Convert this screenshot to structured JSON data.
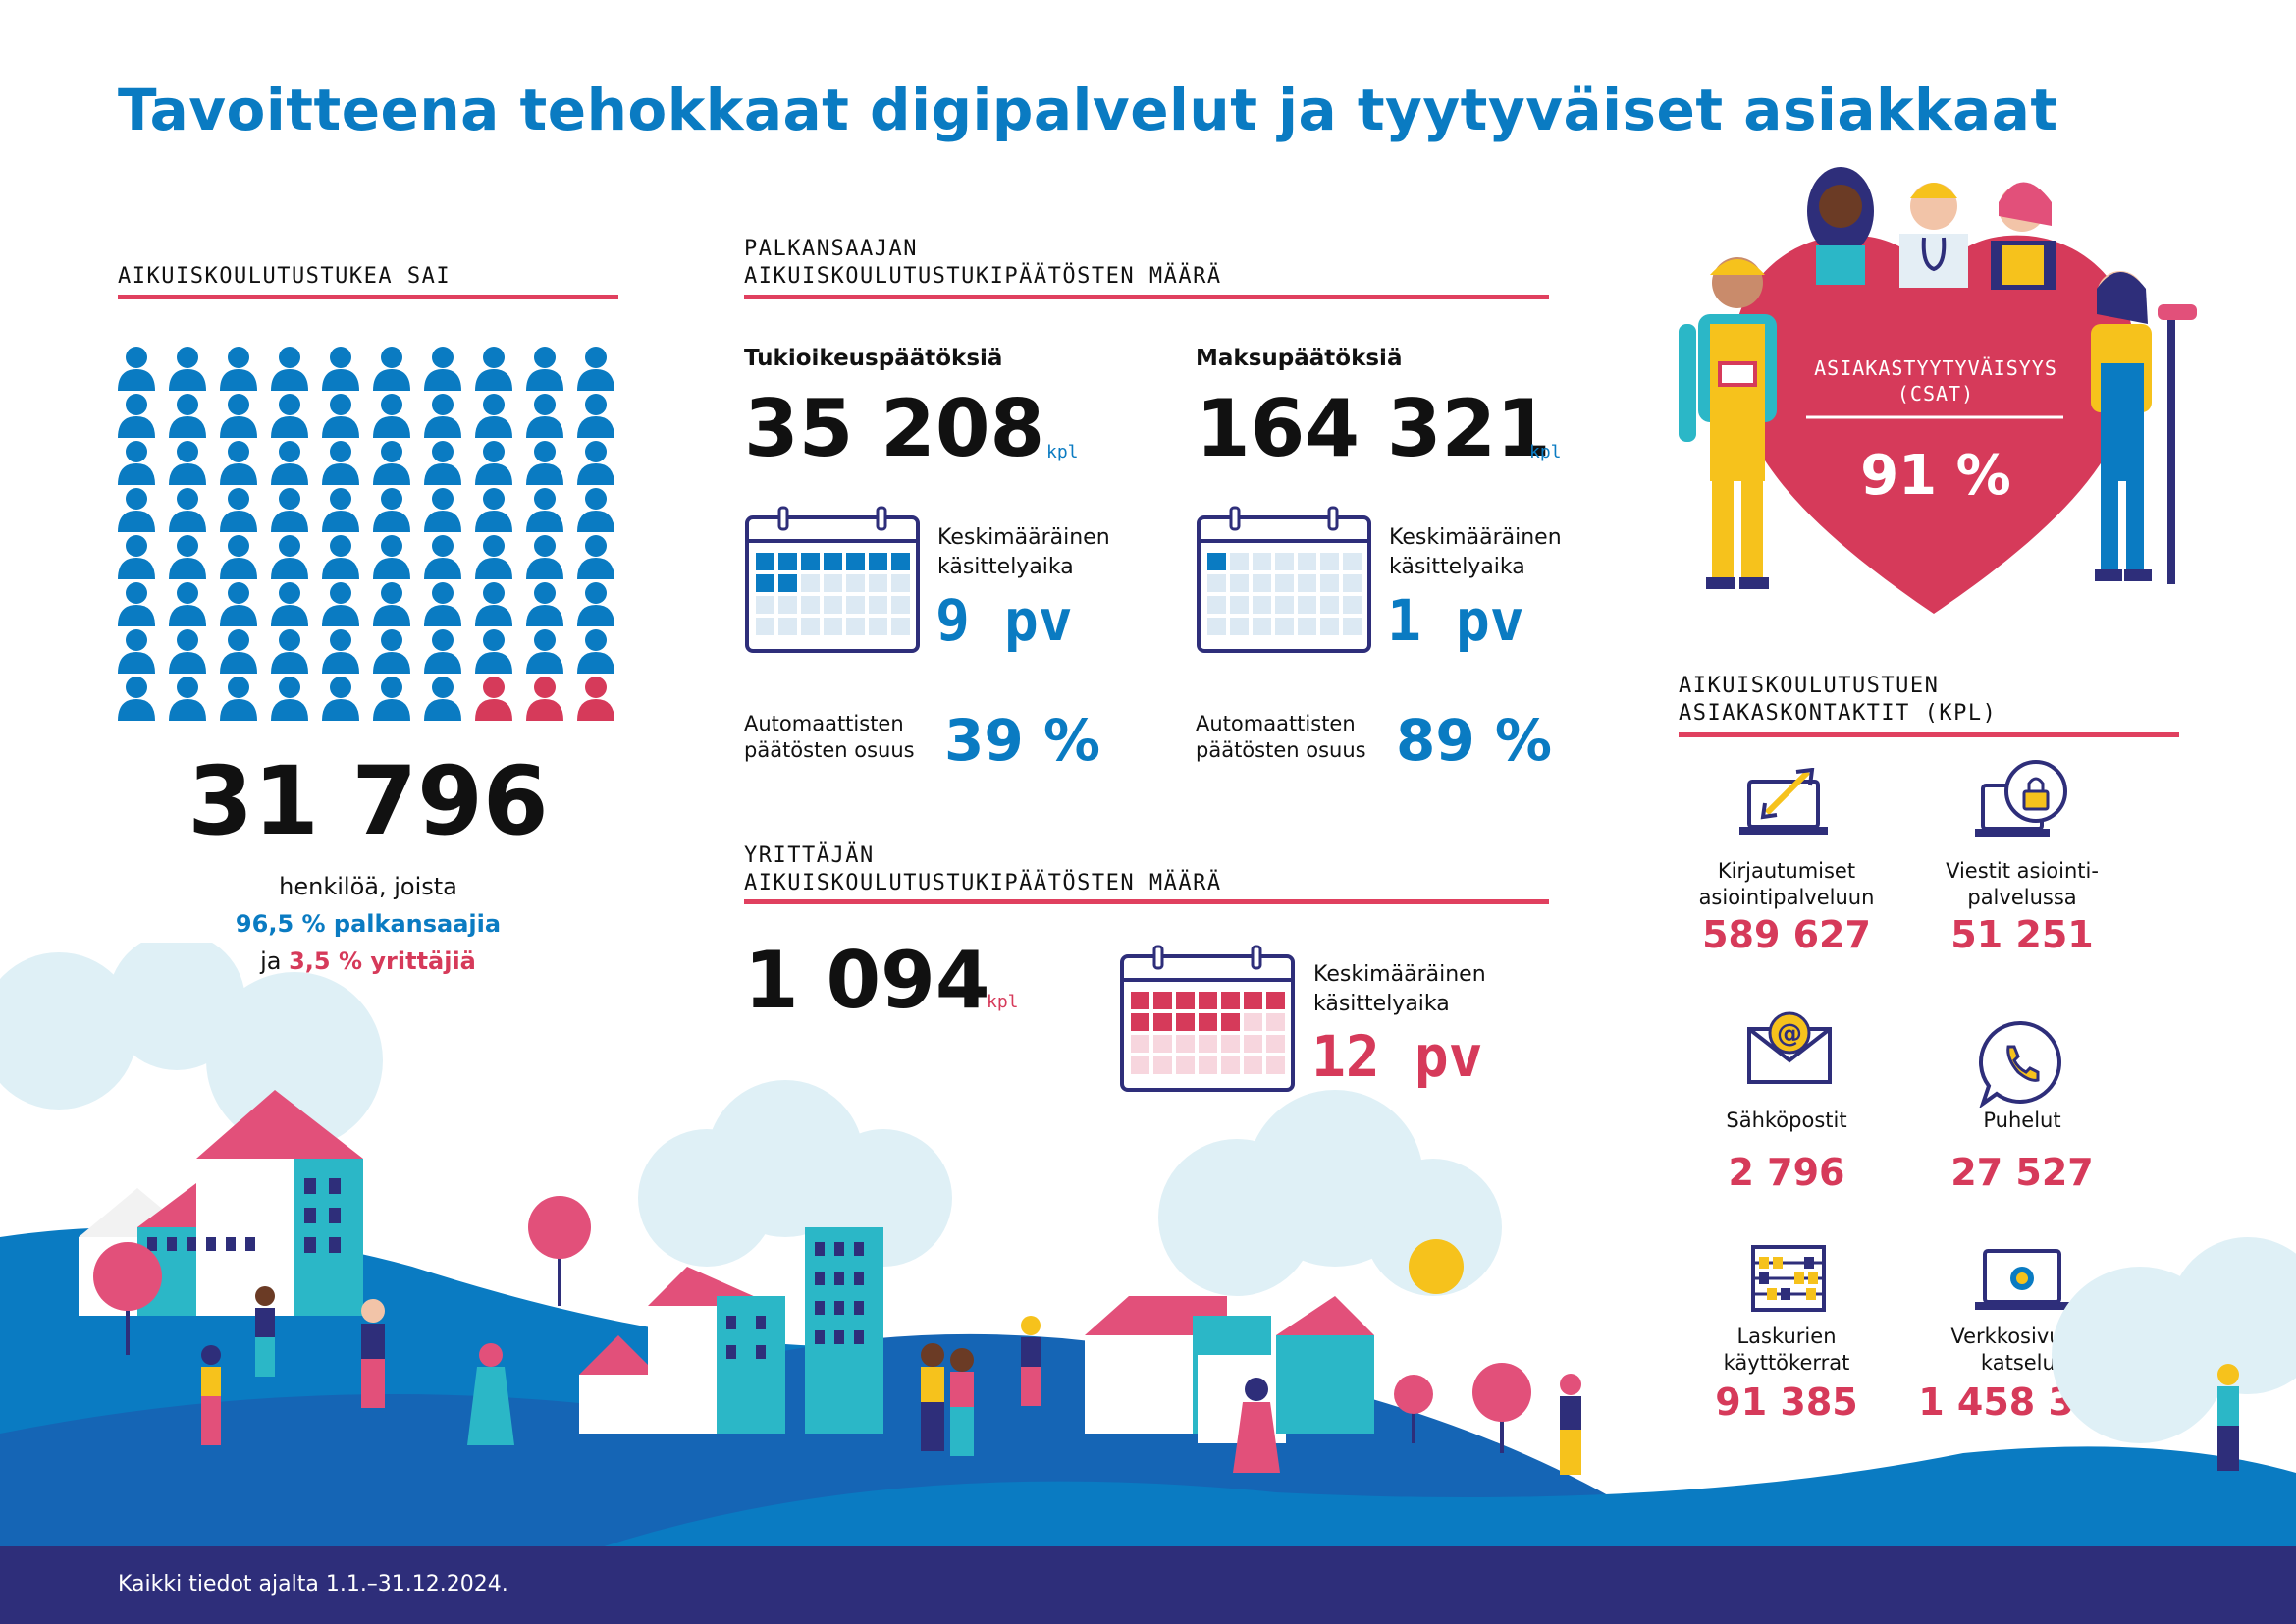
{
  "title": "Tavoitteena tehokkaat digipalvelut ja tyytyväiset asiakkaat",
  "colors": {
    "blue": "#0a7bc2",
    "red": "#d63a5a",
    "navy": "#2e2e7a",
    "rule": "#e0405f"
  },
  "left": {
    "heading": "AIKUISKOULUTUSTUKEA SAI",
    "people_total_icons": 80,
    "people_red_icons": 3,
    "count": "31 796",
    "line1": "henkilöä, joista",
    "line2": "96,5 % palkansaajia",
    "line3_prefix": "ja ",
    "line3_value": "3,5 % yrittäjiä"
  },
  "employee": {
    "heading_l1": "PALKANSAAJAN",
    "heading_l2": "AIKUISKOULUTUSTUKIPÄÄTÖSTEN MÄÄRÄ",
    "col1": {
      "title": "Tukioikeuspäätöksiä",
      "value": "35 208",
      "unit": "kpl",
      "time_label_1": "Keskimääräinen",
      "time_label_2": "käsittelyaika",
      "time_value": "9 pv",
      "filled_days": 9,
      "auto_label_1": "Automaattisten",
      "auto_label_2": "päätösten osuus",
      "auto_value": "39 %"
    },
    "col2": {
      "title": "Maksupäätöksiä",
      "value": "164 321",
      "unit": "kpl",
      "time_label_1": "Keskimääräinen",
      "time_label_2": "käsittelyaika",
      "time_value": "1 pv",
      "filled_days": 1,
      "auto_label_1": "Automaattisten",
      "auto_label_2": "päätösten osuus",
      "auto_value": "89 %"
    }
  },
  "entrepreneur": {
    "heading_l1": "YRITTÄJÄN",
    "heading_l2": "AIKUISKOULUTUSTUKIPÄÄTÖSTEN MÄÄRÄ",
    "value": "1 094",
    "unit": "kpl",
    "time_label_1": "Keskimääräinen",
    "time_label_2": "käsittelyaika",
    "time_value": "12 pv",
    "filled_days": 12
  },
  "csat": {
    "label_1": "ASIAKASTYYTYVÄISYYS",
    "label_2": "(CSAT)",
    "value": "91 %"
  },
  "contacts": {
    "heading_l1": "AIKUISKOULUTUSTUEN",
    "heading_l2": "ASIAKASKONTAKTIT (KPL)",
    "items": [
      {
        "icon": "login-laptop-icon",
        "label_1": "Kirjautumiset",
        "label_2": "asiointipalveluun",
        "value": "589 627"
      },
      {
        "icon": "secure-message-icon",
        "label_1": "Viestit asiointi-",
        "label_2": "palvelussa",
        "value": "51 251"
      },
      {
        "icon": "email-icon",
        "label_1": "",
        "label_2": "Sähköpostit",
        "value": "2 796"
      },
      {
        "icon": "phone-icon",
        "label_1": "",
        "label_2": "Puhelut",
        "value": "27 527"
      },
      {
        "icon": "abacus-icon",
        "label_1": "Laskurien",
        "label_2": "käyttökerrat",
        "value": "91 385"
      },
      {
        "icon": "web-laptop-icon",
        "label_1": "Verkkosivujen",
        "label_2": "katselut",
        "value": "1 458 326"
      }
    ]
  },
  "footer": "Kaikki tiedot ajalta 1.1.–31.12.2024."
}
